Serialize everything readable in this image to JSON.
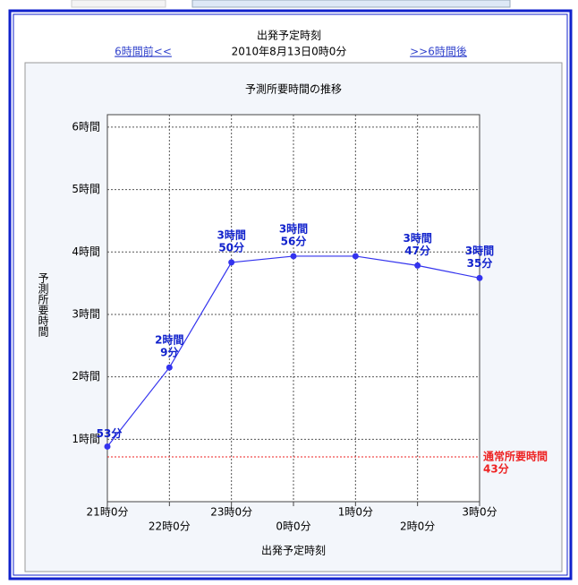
{
  "header": {
    "title": "出発予定時刻",
    "date": "2010年8月13日0時0分",
    "prev": "6時間前<<",
    "next": ">>6時間後"
  },
  "chart_data": {
    "type": "line",
    "title": "予測所要時間の推移",
    "x_label": "出発予定時刻",
    "y_label": "予測所要時間",
    "categories": [
      "21時0分",
      "22時0分",
      "23時0分",
      "0時0分",
      "1時0分",
      "2時0分",
      "3時0分"
    ],
    "series": [
      {
        "name": "予測所要時間",
        "color": "#3333ee",
        "values": [
          0.8833,
          2.15,
          3.8333,
          3.9333,
          3.9333,
          3.7833,
          3.5833
        ],
        "value_labels": [
          [
            "53分"
          ],
          [
            "2時間",
            "9分"
          ],
          [
            "3時間",
            "50分"
          ],
          [
            "3時間",
            "56分"
          ],
          null,
          [
            "3時間",
            "47分"
          ],
          [
            "3時間",
            "35分"
          ]
        ]
      }
    ],
    "reference": {
      "value": 0.7167,
      "label": [
        "通常所要時間",
        "43分"
      ],
      "color": "#ee2222"
    },
    "ylim": [
      0,
      6.2
    ],
    "yticks": [
      {
        "value": 1,
        "label": "1時間"
      },
      {
        "value": 2,
        "label": "2時間"
      },
      {
        "value": 3,
        "label": "3時間"
      },
      {
        "value": 4,
        "label": "4時間"
      },
      {
        "value": 5,
        "label": "5時間"
      },
      {
        "value": 6,
        "label": "6時間"
      }
    ],
    "grid": true
  }
}
